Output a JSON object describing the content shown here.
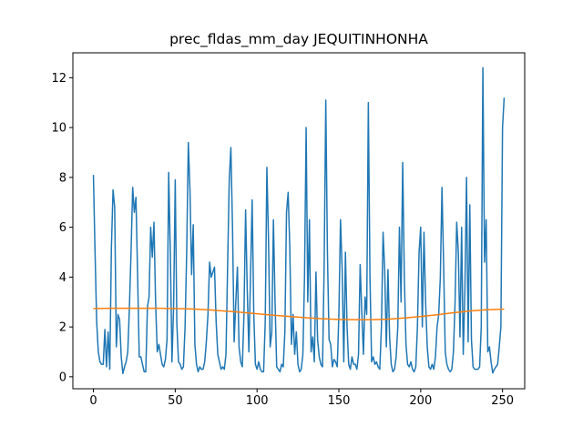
{
  "chart_data": {
    "type": "line",
    "title": "prec_fldas_mm_day JEQUITINHONHA",
    "xlim": [
      -12.55,
      263.55
    ],
    "xticks": [
      0,
      50,
      100,
      150,
      200,
      250
    ],
    "ylim": [
      -0.48,
      13.0
    ],
    "yticks": [
      0,
      2,
      4,
      6,
      8,
      10,
      12
    ],
    "series": [
      {
        "color": "#1f77b4",
        "x": [
          0,
          1,
          2,
          3,
          4,
          5,
          6,
          7,
          8,
          9,
          10,
          11,
          12,
          13,
          14,
          15,
          16,
          17,
          18,
          19,
          20,
          21,
          22,
          23,
          24,
          25,
          26,
          27,
          28,
          29,
          30,
          31,
          32,
          33,
          34,
          35,
          36,
          37,
          38,
          39,
          40,
          41,
          42,
          43,
          44,
          45,
          46,
          47,
          48,
          49,
          50,
          51,
          52,
          53,
          54,
          55,
          56,
          57,
          58,
          59,
          60,
          61,
          62,
          63,
          64,
          65,
          66,
          67,
          68,
          69,
          70,
          71,
          72,
          73,
          74,
          75,
          76,
          77,
          78,
          79,
          80,
          81,
          82,
          83,
          84,
          85,
          86,
          87,
          88,
          89,
          90,
          91,
          92,
          93,
          94,
          95,
          96,
          97,
          98,
          99,
          100,
          101,
          102,
          103,
          104,
          105,
          106,
          107,
          108,
          109,
          110,
          111,
          112,
          113,
          114,
          115,
          116,
          117,
          118,
          119,
          120,
          121,
          122,
          123,
          124,
          125,
          126,
          127,
          128,
          129,
          130,
          131,
          132,
          133,
          134,
          135,
          136,
          137,
          138,
          139,
          140,
          141,
          142,
          143,
          144,
          145,
          146,
          147,
          148,
          149,
          150,
          151,
          152,
          153,
          154,
          155,
          156,
          157,
          158,
          159,
          160,
          161,
          162,
          163,
          164,
          165,
          166,
          167,
          168,
          169,
          170,
          171,
          172,
          173,
          174,
          175,
          176,
          177,
          178,
          179,
          180,
          181,
          182,
          183,
          184,
          185,
          186,
          187,
          188,
          189,
          190,
          191,
          192,
          193,
          194,
          195,
          196,
          197,
          198,
          199,
          200,
          201,
          202,
          203,
          204,
          205,
          206,
          207,
          208,
          209,
          210,
          211,
          212,
          213,
          214,
          215,
          216,
          217,
          218,
          219,
          220,
          221,
          222,
          223,
          224,
          225,
          226,
          227,
          228,
          229,
          230,
          231,
          232,
          233,
          234,
          235,
          236,
          237,
          238,
          239,
          240,
          241,
          242,
          243,
          244,
          245,
          246,
          247,
          248,
          249,
          250,
          251
        ],
        "values": [
          8.1,
          5.0,
          2.2,
          1.0,
          0.6,
          0.5,
          0.5,
          1.9,
          0.4,
          1.8,
          0.3,
          5.2,
          7.5,
          6.8,
          1.2,
          2.5,
          2.3,
          0.8,
          0.13,
          0.4,
          0.6,
          1.0,
          2.8,
          5.0,
          7.6,
          6.6,
          7.2,
          4.1,
          0.8,
          0.8,
          0.5,
          0.2,
          0.2,
          2.8,
          3.2,
          6.0,
          4.8,
          6.2,
          3.0,
          1.0,
          1.3,
          0.9,
          0.5,
          0.4,
          0.7,
          1.5,
          8.2,
          5.0,
          0.6,
          2.8,
          7.9,
          2.1,
          0.6,
          0.5,
          0.3,
          0.4,
          2.0,
          5.0,
          9.4,
          7.5,
          4.1,
          6.1,
          1.3,
          0.5,
          0.2,
          0.4,
          0.3,
          0.3,
          0.6,
          1.4,
          2.5,
          4.6,
          4.0,
          4.2,
          4.4,
          2.2,
          0.9,
          0.6,
          0.3,
          0.4,
          0.3,
          0.9,
          4.4,
          7.9,
          9.2,
          6.0,
          1.4,
          3.0,
          4.4,
          1.2,
          0.6,
          0.4,
          2.5,
          6.7,
          3.5,
          1.0,
          4.0,
          7.1,
          2.5,
          0.5,
          0.3,
          0.6,
          0.3,
          0.2,
          0.2,
          2.2,
          8.4,
          5.5,
          1.2,
          1.8,
          6.3,
          3.0,
          0.4,
          0.3,
          0.2,
          0.5,
          0.4,
          1.8,
          6.6,
          7.4,
          5.2,
          1.3,
          2.5,
          0.9,
          1.8,
          0.5,
          0.2,
          0.3,
          0.9,
          4.0,
          10.0,
          3.0,
          6.3,
          1.0,
          1.6,
          0.6,
          4.2,
          1.5,
          0.8,
          0.5,
          0.4,
          4.4,
          11.1,
          5.0,
          1.5,
          1.3,
          0.4,
          0.7,
          0.6,
          0.4,
          2.5,
          6.3,
          4.3,
          0.6,
          5.0,
          2.0,
          0.5,
          0.3,
          0.8,
          0.5,
          0.5,
          0.3,
          0.9,
          4.5,
          2.6,
          0.9,
          3.2,
          2.5,
          11.0,
          4.0,
          0.6,
          0.8,
          0.5,
          0.6,
          0.4,
          0.3,
          2.0,
          5.8,
          4.3,
          1.2,
          4.3,
          1.6,
          0.5,
          0.2,
          0.3,
          0.8,
          2.0,
          6.0,
          3.0,
          8.6,
          4.0,
          1.3,
          0.5,
          0.4,
          0.6,
          0.3,
          0.2,
          0.4,
          2.0,
          5.0,
          6.0,
          2.0,
          5.8,
          3.0,
          1.2,
          0.4,
          0.3,
          0.5,
          0.3,
          0.8,
          2.0,
          2.5,
          4.0,
          7.6,
          4.5,
          1.0,
          0.5,
          0.3,
          0.2,
          0.3,
          1.0,
          3.0,
          6.2,
          5.0,
          1.6,
          6.0,
          0.9,
          3.5,
          8.0,
          1.4,
          6.9,
          1.5,
          0.4,
          0.3,
          0.3,
          0.3,
          0.4,
          2.0,
          12.4,
          4.6,
          6.3,
          1.0,
          1.2,
          0.6,
          0.15,
          0.3,
          0.4,
          0.5,
          1.2,
          2.0,
          10.0,
          11.2
        ]
      },
      {
        "color": "#ff7f0e",
        "x": [
          0,
          10,
          20,
          30,
          40,
          50,
          60,
          70,
          80,
          90,
          100,
          110,
          120,
          130,
          140,
          150,
          160,
          170,
          180,
          190,
          200,
          210,
          220,
          230,
          240,
          250,
          251
        ],
        "values": [
          2.74,
          2.75,
          2.75,
          2.75,
          2.75,
          2.74,
          2.72,
          2.69,
          2.64,
          2.59,
          2.53,
          2.47,
          2.42,
          2.37,
          2.33,
          2.3,
          2.29,
          2.29,
          2.31,
          2.36,
          2.42,
          2.49,
          2.57,
          2.64,
          2.69,
          2.71,
          2.72
        ]
      }
    ]
  }
}
